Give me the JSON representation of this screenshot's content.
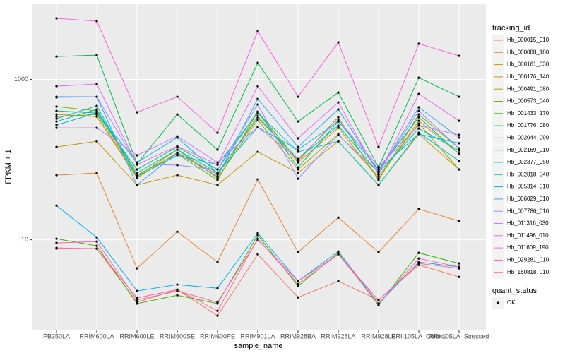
{
  "chart_data": {
    "type": "line",
    "x_label": "sample_name",
    "y_label": "FPKM + 1",
    "categories": [
      "PB350LA",
      "RRIM600LA",
      "RRIM600LE",
      "RRIM600SE",
      "RRIM600PE",
      "RRIM901LA",
      "RRIM928BA",
      "RRIM928LA",
      "RRIM928LE",
      "RRII105LA_Control",
      "RRII105LA_Stressed"
    ],
    "log_y": true,
    "ylim": [
      0.74,
      8850
    ],
    "yticks": [
      10,
      1000
    ],
    "grid": true,
    "legend_title": "tracking_id",
    "legend_position": "right",
    "point_color": "#000000",
    "shape_legend": {
      "title": "quant_status",
      "entries": [
        "OK"
      ]
    },
    "series": [
      {
        "name": "Hb_000015_010",
        "color": "#F8766D",
        "values": [
          7.76,
          7.76,
          1.66,
          2.39,
          1.13,
          6.6,
          1.91,
          3.05,
          1.77,
          4.86,
          3.44
        ]
      },
      {
        "name": "Hb_000088_180",
        "color": "#EA8331",
        "values": [
          64,
          68,
          4.4,
          12.6,
          5.28,
          56.6,
          7.01,
          18.9,
          7.01,
          24.2,
          17.1
        ]
      },
      {
        "name": "Hb_000161_030",
        "color": "#D89000",
        "values": [
          366,
          344,
          59,
          122,
          65.3,
          352,
          92.2,
          249,
          57.8,
          305,
          118
        ]
      },
      {
        "name": "Hb_000176_140",
        "color": "#C09B00",
        "values": [
          144,
          169,
          48.2,
          64,
          48.2,
          125,
          68,
          169,
          48.2,
          208,
          75.3
        ]
      },
      {
        "name": "Hb_000491_080",
        "color": "#A3A500",
        "values": [
          344,
          366,
          61.5,
          133,
          59,
          311,
          75.3,
          208,
          61.5,
          281,
          75.3
        ]
      },
      {
        "name": "Hb_000573_040",
        "color": "#7CAE00",
        "values": [
          458,
          405,
          64,
          118,
          55.5,
          397,
          96,
          338,
          55.5,
          366,
          138
        ]
      },
      {
        "name": "Hb_001433_170",
        "color": "#39B600",
        "values": [
          10.3,
          8.41,
          1.6,
          2.03,
          1.6,
          11.4,
          2.65,
          6.87,
          1.53,
          6.87,
          5.07
        ]
      },
      {
        "name": "Hb_001776_080",
        "color": "#00BB4E",
        "values": [
          1930,
          2010,
          88.5,
          366,
          133,
          1610,
          299,
          687,
          80,
          1050,
          608
        ]
      },
      {
        "name": "Hb_002044_090",
        "color": "#00BF7D",
        "values": [
          405,
          381,
          75.3,
          144,
          75.3,
          397,
          80,
          299,
          75.3,
          338,
          118
        ]
      },
      {
        "name": "Hb_002169_010",
        "color": "#00C1A3",
        "values": [
          299,
          423,
          68,
          133,
          68,
          331,
          102,
          265,
          68,
          244,
          130
        ]
      },
      {
        "name": "Hb_002377_050",
        "color": "#00BFC4",
        "values": [
          324,
          468,
          61.5,
          113,
          86.7,
          381,
          125,
          169,
          48.2,
          216,
          96
        ]
      },
      {
        "name": "Hb_002818_040",
        "color": "#00BAE0",
        "values": [
          270,
          381,
          92.2,
          188,
          68,
          254,
          133,
          299,
          75.3,
          208,
          160
        ]
      },
      {
        "name": "Hb_005314_010",
        "color": "#00B0F6",
        "values": [
          26.7,
          10.7,
          2.3,
          2.76,
          2.49,
          12.1,
          3.05,
          7.16,
          1.6,
          5.28,
          4.58
        ]
      },
      {
        "name": "Hb_006029_010",
        "color": "#35A2FF",
        "values": [
          608,
          608,
          48.2,
          122,
          61.5,
          573,
          144,
          423,
          70.8,
          449,
          188
        ]
      },
      {
        "name": "Hb_007786_010",
        "color": "#9590FF",
        "values": [
          596,
          608,
          88.5,
          85.1,
          75.3,
          487,
          57.8,
          203,
          69.4,
          405,
          138
        ]
      },
      {
        "name": "Hb_011316_030",
        "color": "#C77CFF",
        "values": [
          249,
          249,
          113,
          195,
          92.2,
          254,
          102,
          311,
          81.6,
          265,
          203
        ]
      },
      {
        "name": "Hb_011496_010",
        "color": "#E76BF3",
        "values": [
          824,
          877,
          86.7,
          147,
          86.7,
          824,
          184,
          517,
          65.3,
          659,
          305
        ]
      },
      {
        "name": "Hb_011609_190",
        "color": "#FA62DB",
        "values": [
          5780,
          5330,
          389,
          608,
          216,
          4010,
          608,
          2900,
          144,
          2790,
          1970
        ]
      },
      {
        "name": "Hb_029281_010",
        "color": "#FF62BC",
        "values": [
          9.12,
          9.51,
          1.77,
          2.3,
          1.66,
          10,
          3.05,
          6.6,
          1.6,
          5.84,
          4.58
        ]
      },
      {
        "name": "Hb_160818_010",
        "color": "#FF6C91",
        "values": [
          7.92,
          7.76,
          1.88,
          2.39,
          1.3,
          10.3,
          2.81,
          6.6,
          1.77,
          5.07,
          4.4
        ]
      }
    ]
  }
}
